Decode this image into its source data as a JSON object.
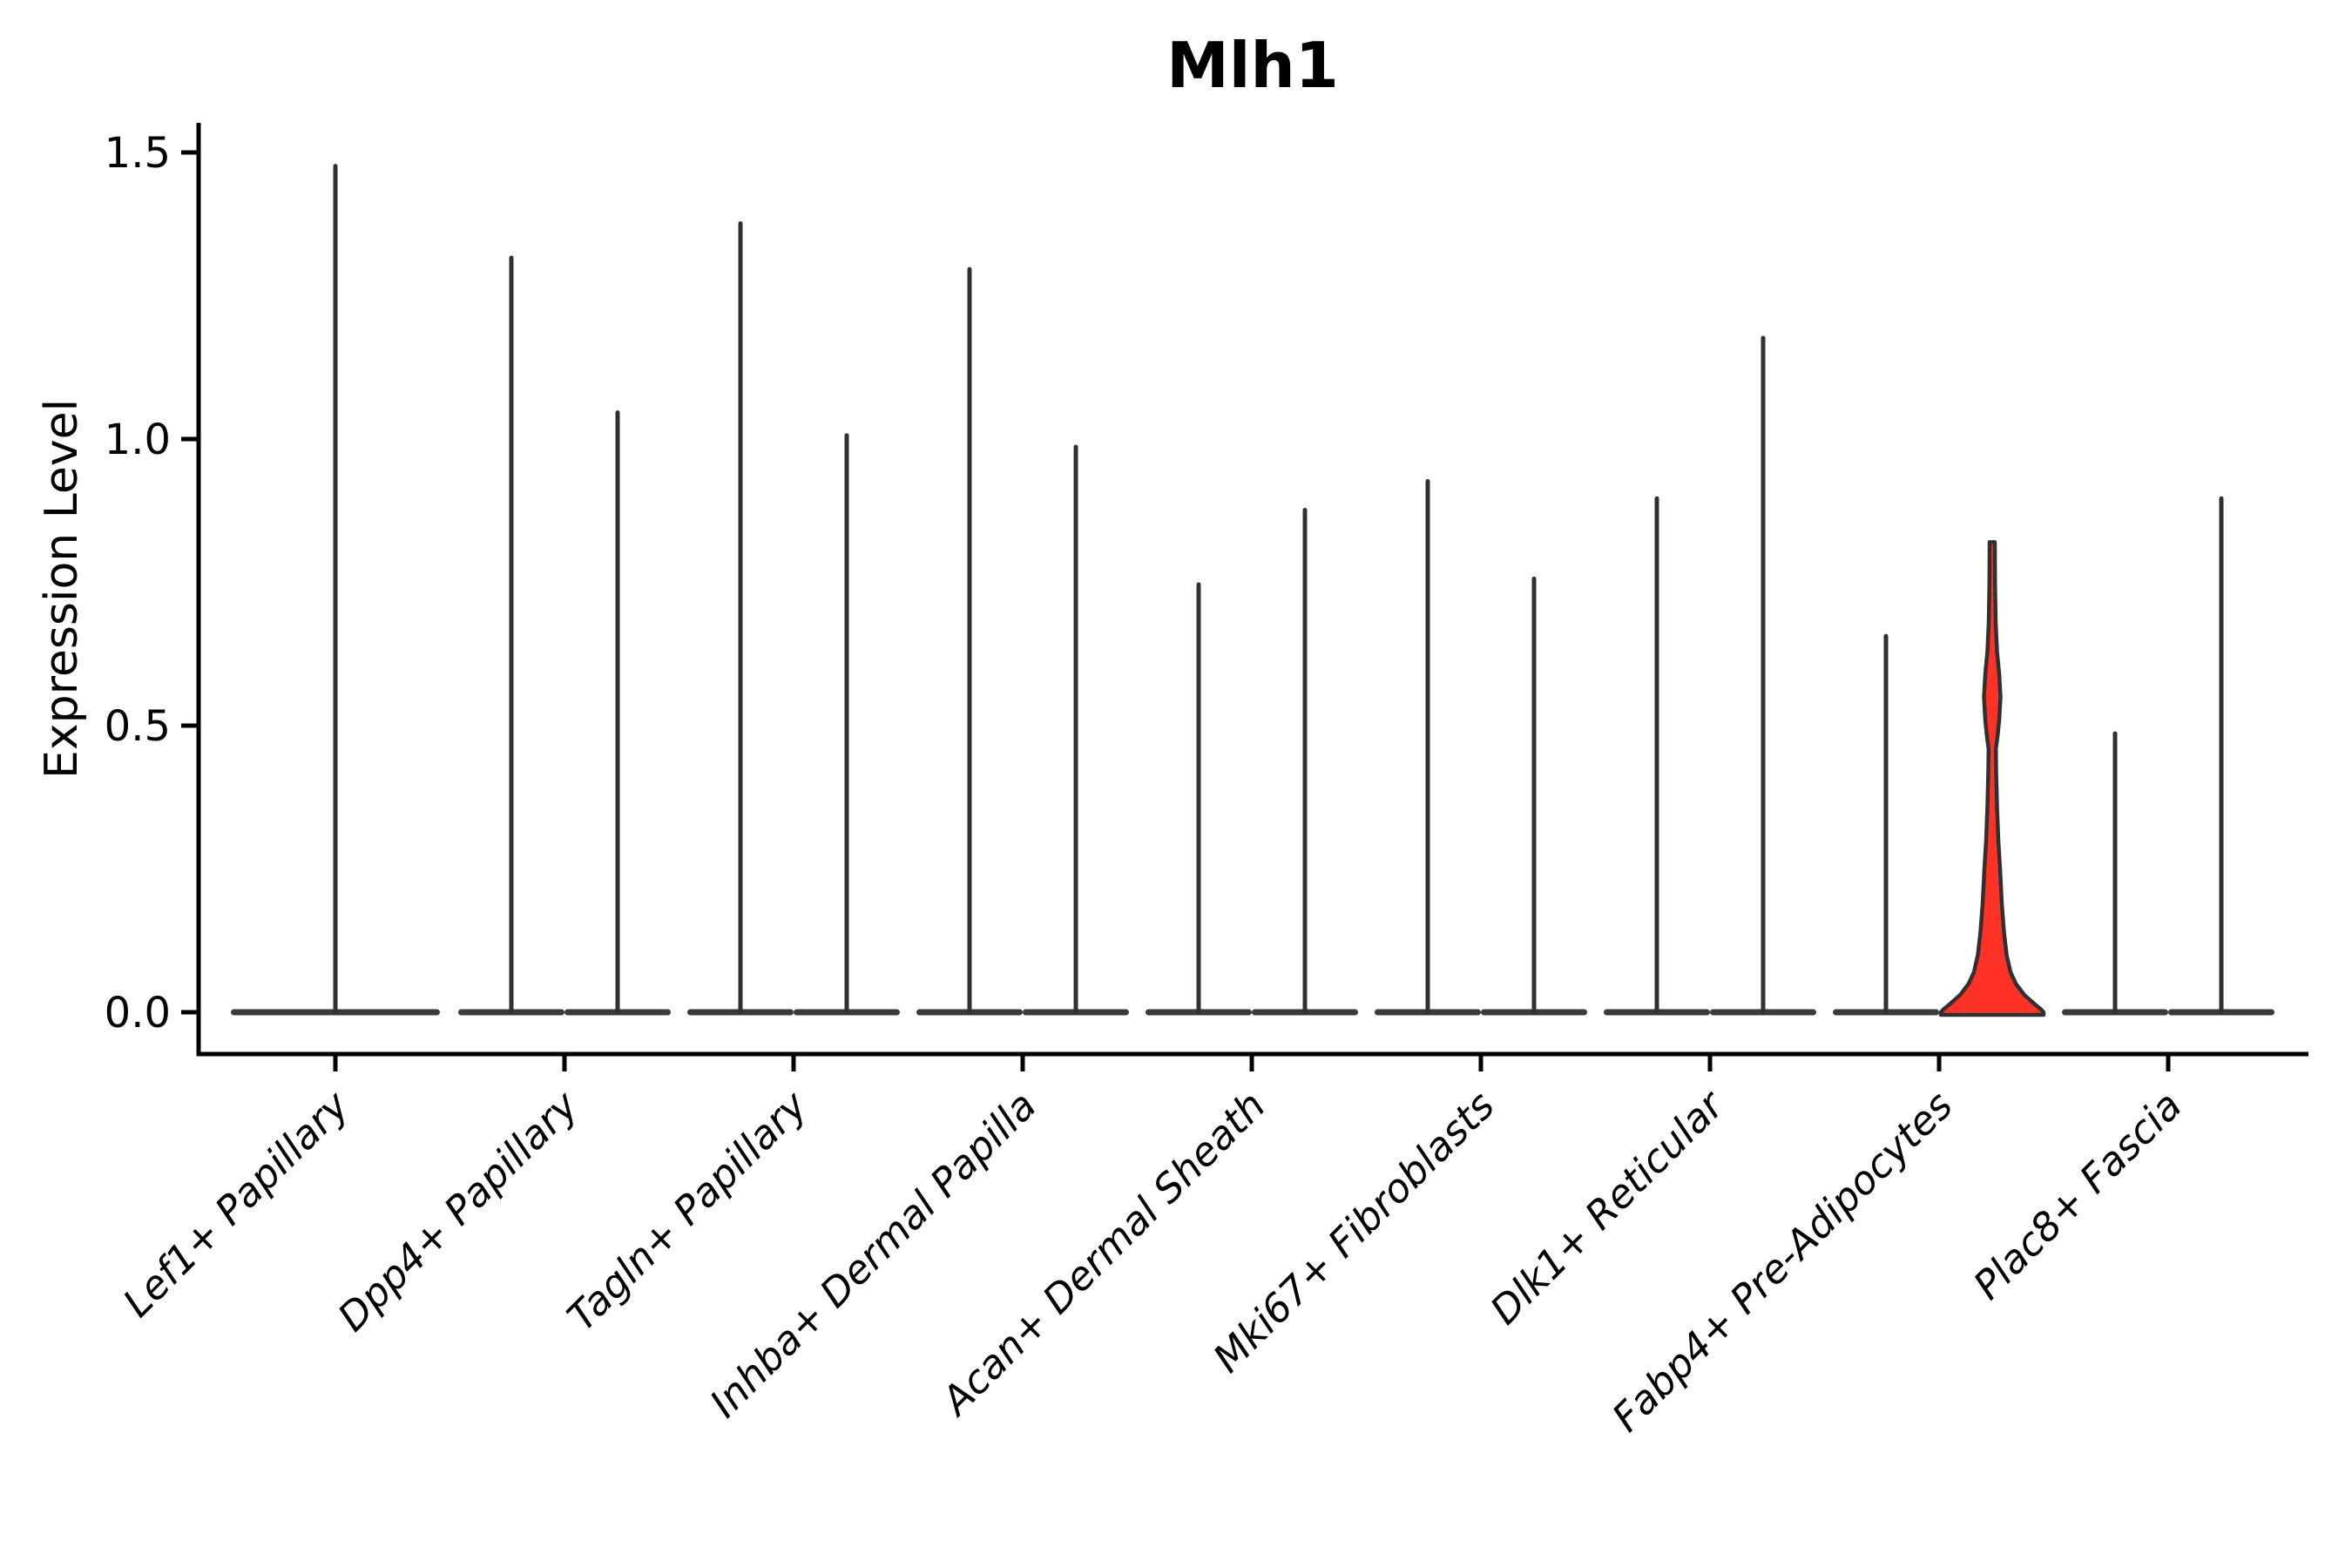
{
  "chart_data": {
    "type": "violin",
    "title": "Mlh1",
    "ylabel": "Expression Level",
    "xlabel": "",
    "ylim": [
      0,
      1.5
    ],
    "yticks": [
      0.0,
      0.5,
      1.0,
      1.5
    ],
    "ytick_labels": [
      "0.0",
      "0.5",
      "1.0",
      "1.5"
    ],
    "grid": "off",
    "legend": "none",
    "categories": [
      "Lef1+ Papillary",
      "Dpp4+ Papillary",
      "Tagln+ Papillary",
      "Inhba+ Dermal Papilla",
      "Acan+ Dermal Sheath",
      "Mki67+ Fibroblasts",
      "Dlk1+ Reticular",
      "Fabp4+ Pre-Adipocytes",
      "Plac8+ Fascia"
    ],
    "violins": [
      {
        "category": "Lef1+ Papillary",
        "category_index": 0,
        "slot": "center",
        "max_expression": 1.48,
        "highlighted": false
      },
      {
        "category": "Dpp4+ Papillary",
        "category_index": 1,
        "slot": "left",
        "max_expression": 1.32,
        "highlighted": false
      },
      {
        "category": "Dpp4+ Papillary",
        "category_index": 1,
        "slot": "right",
        "max_expression": 1.05,
        "highlighted": false
      },
      {
        "category": "Tagln+ Papillary",
        "category_index": 2,
        "slot": "left",
        "max_expression": 1.38,
        "highlighted": false
      },
      {
        "category": "Tagln+ Papillary",
        "category_index": 2,
        "slot": "right",
        "max_expression": 1.01,
        "highlighted": false
      },
      {
        "category": "Inhba+ Dermal Papilla",
        "category_index": 3,
        "slot": "left",
        "max_expression": 1.3,
        "highlighted": false
      },
      {
        "category": "Inhba+ Dermal Papilla",
        "category_index": 3,
        "slot": "right",
        "max_expression": 0.99,
        "highlighted": false
      },
      {
        "category": "Acan+ Dermal Sheath",
        "category_index": 4,
        "slot": "left",
        "max_expression": 0.75,
        "highlighted": false
      },
      {
        "category": "Acan+ Dermal Sheath",
        "category_index": 4,
        "slot": "right",
        "max_expression": 0.88,
        "highlighted": false
      },
      {
        "category": "Mki67+ Fibroblasts",
        "category_index": 5,
        "slot": "left",
        "max_expression": 0.93,
        "highlighted": false
      },
      {
        "category": "Mki67+ Fibroblasts",
        "category_index": 5,
        "slot": "right",
        "max_expression": 0.76,
        "highlighted": false
      },
      {
        "category": "Dlk1+ Reticular",
        "category_index": 6,
        "slot": "left",
        "max_expression": 0.9,
        "highlighted": false
      },
      {
        "category": "Dlk1+ Reticular",
        "category_index": 6,
        "slot": "right",
        "max_expression": 1.18,
        "highlighted": false
      },
      {
        "category": "Fabp4+ Pre-Adipocytes",
        "category_index": 7,
        "slot": "left",
        "max_expression": 0.66,
        "highlighted": false
      },
      {
        "category": "Fabp4+ Pre-Adipocytes",
        "category_index": 7,
        "slot": "right",
        "max_expression": 0.82,
        "highlighted": true
      },
      {
        "category": "Plac8+ Fascia",
        "category_index": 8,
        "slot": "left",
        "max_expression": 0.49,
        "highlighted": false
      },
      {
        "category": "Plac8+ Fascia",
        "category_index": 8,
        "slot": "right",
        "max_expression": 0.9,
        "highlighted": false
      }
    ],
    "highlighted_violin_profile_value_halfwidth": [
      [
        0.82,
        3
      ],
      [
        0.75,
        3.2
      ],
      [
        0.68,
        4
      ],
      [
        0.63,
        5.5
      ],
      [
        0.59,
        8
      ],
      [
        0.55,
        9.5
      ],
      [
        0.51,
        8
      ],
      [
        0.48,
        6
      ],
      [
        0.46,
        4.2
      ],
      [
        0.42,
        4.5
      ],
      [
        0.36,
        5.5
      ],
      [
        0.3,
        7
      ],
      [
        0.25,
        9
      ],
      [
        0.19,
        11
      ],
      [
        0.14,
        13.5
      ],
      [
        0.1,
        16.5
      ],
      [
        0.07,
        21
      ],
      [
        0.05,
        27
      ],
      [
        0.03,
        37
      ],
      [
        0.015,
        48
      ],
      [
        0.005,
        56
      ],
      [
        0.0,
        59
      ]
    ],
    "colors": {
      "highlight_fill": "#ff3228",
      "violin_stroke": "#303030",
      "violin_base_fill": "#3a3a3a",
      "axis_color": "#000000",
      "background": "#ffffff"
    }
  }
}
